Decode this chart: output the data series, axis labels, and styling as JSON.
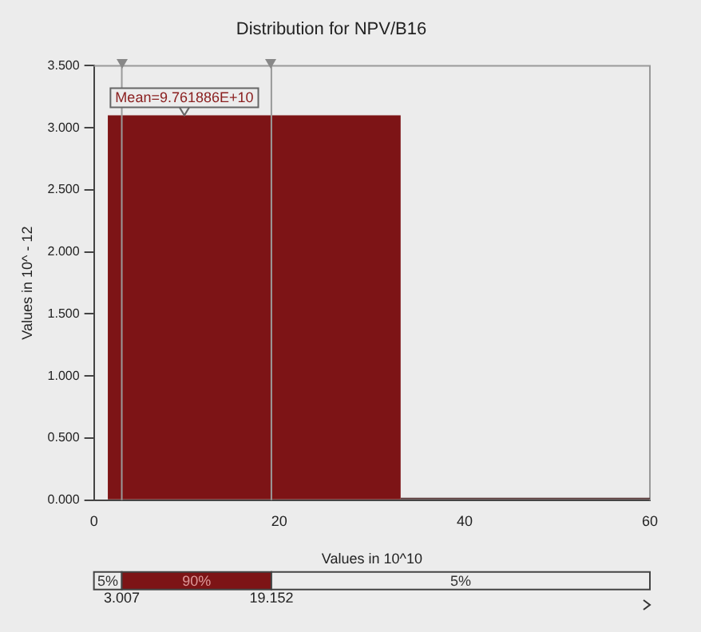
{
  "chart_data": {
    "type": "histogram",
    "title": "Distribution for NPV/B16",
    "xlabel": "Values in 10^10",
    "ylabel": "Values in 10^ - 12",
    "bins": [
      1.5,
      33.1,
      60
    ],
    "values": [
      3.1,
      0.02
    ],
    "colors": [
      "#7d1416",
      "#5a3b3b"
    ],
    "xlim": [
      0,
      60
    ],
    "xticks": [
      0,
      20,
      40,
      60
    ],
    "ylim": [
      0,
      3.5
    ],
    "yticks": [
      {
        "value": 0,
        "label": "0.000"
      },
      {
        "value": 0.5,
        "label": "0.500"
      },
      {
        "value": 1,
        "label": "1.000"
      },
      {
        "value": 1.5,
        "label": "1.500"
      },
      {
        "value": 2,
        "label": "2.000"
      },
      {
        "value": 2.5,
        "label": "2.500"
      },
      {
        "value": 3,
        "label": "3.000"
      },
      {
        "value": 3.5,
        "label": "3.500"
      }
    ],
    "grid": false,
    "legend": false,
    "ref_lines": [
      {
        "axis": "x",
        "value": 3.007,
        "color": "#9a9a9a"
      },
      {
        "axis": "x",
        "value": 19.152,
        "color": "#9a9a9a"
      }
    ],
    "annotations": [
      {
        "text": "Mean=9.761886E+10",
        "x": 9.761886,
        "y": 3.1
      },
      "5%",
      "90%",
      "5%",
      "3.007",
      "19.152"
    ]
  }
}
